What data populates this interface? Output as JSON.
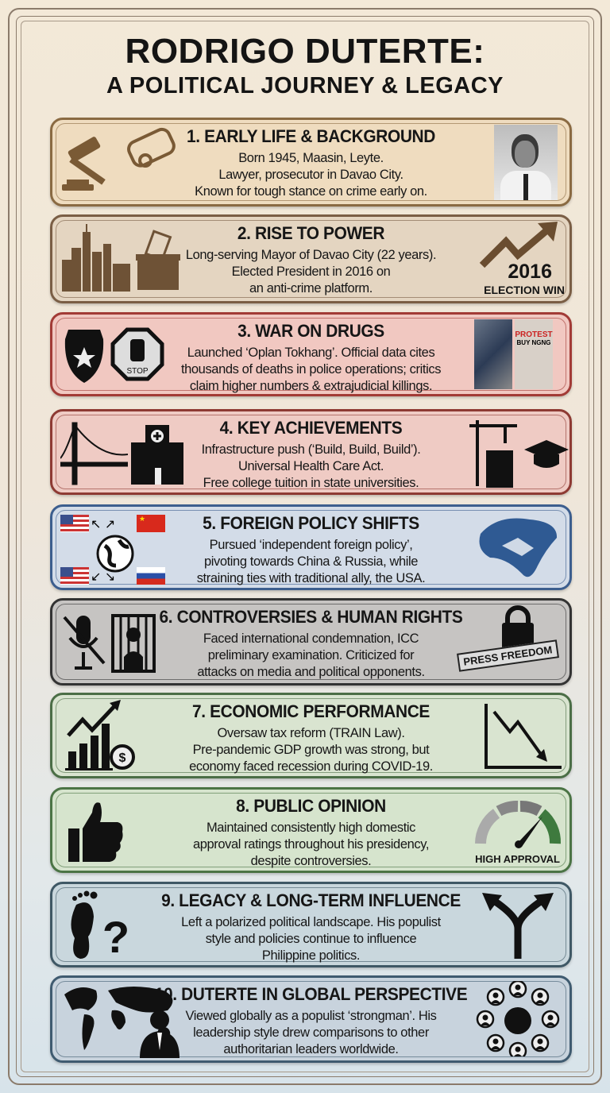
{
  "title": {
    "line1": "RODRIGO DUTERTE:",
    "line2": "A POLITICAL JOURNEY & LEGACY"
  },
  "sections": [
    {
      "heading": "1. EARLY LIFE & BACKGROUND",
      "lines": [
        "Born 1945, Maasin, Leyte.",
        "Lawyer, prosecutor in Davao City.",
        "Known for tough stance on crime early on."
      ],
      "left_icons": [
        "gavel-icon",
        "diploma-icon"
      ],
      "right_icons": [
        "portrait-photo"
      ],
      "bg": "#efdcbf",
      "border": "#8a6a42",
      "icon_color": "#7a5a35"
    },
    {
      "heading": "2. RISE TO POWER",
      "lines": [
        "Long-serving Mayor of Davao City (22 years).",
        "Elected President in 2016 on",
        "an anti-crime platform."
      ],
      "left_icons": [
        "city-skyline-icon",
        "ballot-box-icon"
      ],
      "right_icons": [
        "trend-up-arrow-icon"
      ],
      "badge": {
        "year": "2016",
        "label": "ELECTION WIN"
      },
      "bg": "#e4d5c1",
      "border": "#7a5e45",
      "icon_color": "#6e5236"
    },
    {
      "heading": "3. WAR ON DRUGS",
      "lines": [
        "Launched ‘Oplan Tokhang’. Official data cites",
        "thousands of deaths in police operations; critics",
        "claim higher numbers & extrajudicial killings."
      ],
      "left_icons": [
        "police-badge-icon",
        "stop-hand-icon"
      ],
      "right_icons": [
        "protest-photo"
      ],
      "photo_text": [
        "PROTEST",
        "BUY NGNG"
      ],
      "bg": "#f1c8c1",
      "border": "#a23b36",
      "icon_color": "#111111"
    },
    {
      "heading": "4. KEY ACHIEVEMENTS",
      "lines": [
        "Infrastructure push (‘Build, Build, Build’).",
        "Universal Health Care Act.",
        "Free college tuition in state universities."
      ],
      "left_icons": [
        "bridge-icon",
        "hospital-icon"
      ],
      "right_icons": [
        "construction-crane-icon",
        "graduation-cap-icon"
      ],
      "bg": "#efcbc4",
      "border": "#8e3a33",
      "icon_color": "#111111"
    },
    {
      "heading": "5. FOREIGN POLICY SHIFTS",
      "lines": [
        "Pursued ‘independent foreign policy’,",
        "pivoting towards China & Russia, while",
        "straining ties with traditional ally, the USA."
      ],
      "left_icons": [
        "usa-flag-icon",
        "china-flag-icon",
        "globe-icon",
        "russia-flag-icon"
      ],
      "right_icons": [
        "handshake-map-icon"
      ],
      "bg": "#d3dce8",
      "border": "#3c5e8e",
      "icon_color": "#2f5a93"
    },
    {
      "heading": "6. CONTROVERSIES & HUMAN RIGHTS",
      "lines": [
        "Faced international condemnation, ICC",
        "preliminary examination. Criticized for",
        "attacks on media and political opponents."
      ],
      "left_icons": [
        "muted-microphone-icon",
        "jail-bars-icon"
      ],
      "right_icons": [
        "padlock-icon"
      ],
      "badge": {
        "label": "PRESS FREEDOM"
      },
      "bg": "#c6c4c2",
      "border": "#333333",
      "icon_color": "#111111"
    },
    {
      "heading": "7. ECONOMIC PERFORMANCE",
      "lines": [
        "Oversaw tax reform (TRAIN Law).",
        "Pre-pandemic GDP growth was strong, but",
        "economy faced recession during COVID-19."
      ],
      "left_icons": [
        "growth-chart-dollar-icon"
      ],
      "right_icons": [
        "decline-chart-icon"
      ],
      "bg": "#d9e4d0",
      "border": "#4b6e46",
      "icon_color": "#111111"
    },
    {
      "heading": "8. PUBLIC OPINION",
      "lines": [
        "Maintained consistently high domestic",
        "approval ratings throughout his presidency,",
        "despite controversies."
      ],
      "left_icons": [
        "thumbs-up-icon"
      ],
      "right_icons": [
        "approval-gauge-icon"
      ],
      "badge": {
        "label": "HIGH APPROVAL"
      },
      "gauge_level": "high",
      "bg": "#d6e4cd",
      "border": "#4b7445",
      "icon_color": "#111111"
    },
    {
      "heading": "9. LEGACY & LONG-TERM INFLUENCE",
      "lines": [
        "Left a polarized political landscape. His populist",
        "style and policies continue to influence",
        "Philippine politics."
      ],
      "left_icons": [
        "footprint-question-icon"
      ],
      "right_icons": [
        "split-arrows-icon"
      ],
      "bg": "#c9d7dd",
      "border": "#3f5865",
      "icon_color": "#111111"
    },
    {
      "heading": "10. DUTERTE IN GLOBAL PERSPECTIVE",
      "lines": [
        "Viewed globally as a populist ‘strongman’. His",
        "leadership style drew comparisons to other",
        "authoritarian leaders worldwide."
      ],
      "left_icons": [
        "world-map-leader-icon"
      ],
      "right_icons": [
        "global-leaders-network-icon"
      ],
      "bg": "#c8d3dd",
      "border": "#3f5b70",
      "icon_color": "#111111"
    }
  ]
}
